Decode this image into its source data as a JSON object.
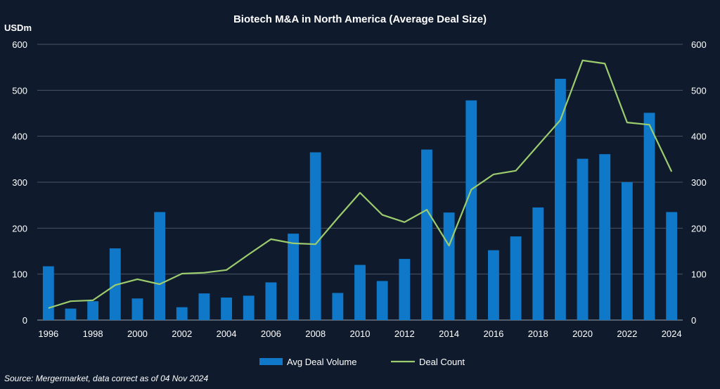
{
  "chart_data": {
    "type": "bar+line",
    "title": "Biotech M&A in North America (Average Deal Size)",
    "y_unit_label": "USDm",
    "ylim": [
      0,
      600
    ],
    "yticks": [
      0,
      100,
      200,
      300,
      400,
      500,
      600
    ],
    "y2lim": [
      0,
      600
    ],
    "y2ticks": [
      0,
      100,
      200,
      300,
      400,
      500,
      600
    ],
    "categories": [
      "1996",
      "1997",
      "1998",
      "1999",
      "2000",
      "2001",
      "2002",
      "2003",
      "2004",
      "2005",
      "2006",
      "2007",
      "2008",
      "2009",
      "2010",
      "2011",
      "2012",
      "2013",
      "2014",
      "2015",
      "2016",
      "2017",
      "2018",
      "2019",
      "2020",
      "2021",
      "2022",
      "2023",
      "2024"
    ],
    "xtick_labels": [
      "1996",
      "1998",
      "2000",
      "2002",
      "2004",
      "2006",
      "2008",
      "2010",
      "2012",
      "2014",
      "2016",
      "2018",
      "2020",
      "2022",
      "2024"
    ],
    "series": [
      {
        "name": "Avg Deal Volume",
        "type": "bar",
        "axis": "left",
        "color": "#0f78c8",
        "values": [
          117,
          25,
          41,
          156,
          47,
          235,
          28,
          58,
          49,
          53,
          82,
          188,
          365,
          59,
          120,
          85,
          133,
          371,
          234,
          478,
          152,
          182,
          245,
          525,
          351,
          361,
          300,
          451,
          235
        ]
      },
      {
        "name": "Deal Count",
        "type": "line",
        "axis": "right",
        "color": "#9ccc6d",
        "values": [
          26,
          41,
          43,
          76,
          89,
          78,
          101,
          103,
          109,
          143,
          176,
          167,
          165,
          222,
          277,
          229,
          213,
          240,
          162,
          284,
          317,
          325,
          380,
          435,
          565,
          558,
          430,
          425,
          323
        ]
      }
    ],
    "legend": {
      "position": "bottom",
      "items": [
        "Avg Deal Volume",
        "Deal Count"
      ]
    },
    "gridlines": true,
    "background": "#0f1b2d",
    "grid_color": "#4a5566"
  },
  "source_note": "Source: Mergermarket, data correct as of 04 Nov 2024"
}
